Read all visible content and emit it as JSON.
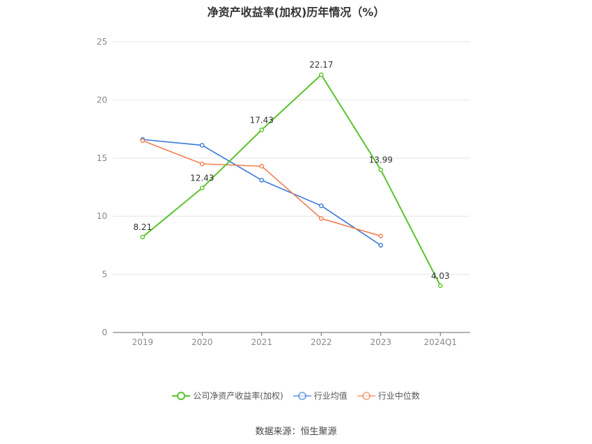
{
  "chart_data": {
    "type": "line",
    "title": "净资产收益率(加权)历年情况（%）",
    "categories": [
      "2019",
      "2020",
      "2021",
      "2022",
      "2023",
      "2024Q1"
    ],
    "ylim": [
      0,
      25
    ],
    "yticks": [
      "0",
      "5",
      "10",
      "15",
      "20",
      "25"
    ],
    "grid": true,
    "legend_position": "bottom",
    "series": [
      {
        "name": "公司净资产收益率(加权)",
        "color": "#5ac22e",
        "values": [
          8.21,
          12.43,
          17.43,
          22.17,
          13.99,
          4.03
        ],
        "labels": [
          "8.21",
          "12.43",
          "17.43",
          "22.17",
          "13.99",
          "4.03"
        ]
      },
      {
        "name": "行业均值",
        "color": "#3a78d8",
        "values": [
          16.6,
          16.1,
          13.1,
          10.9,
          7.5,
          null
        ]
      },
      {
        "name": "行业中位数",
        "color": "#f08050",
        "values": [
          16.5,
          14.5,
          14.3,
          9.8,
          8.3,
          null
        ]
      }
    ]
  },
  "source": "数据来源：恒生聚源"
}
